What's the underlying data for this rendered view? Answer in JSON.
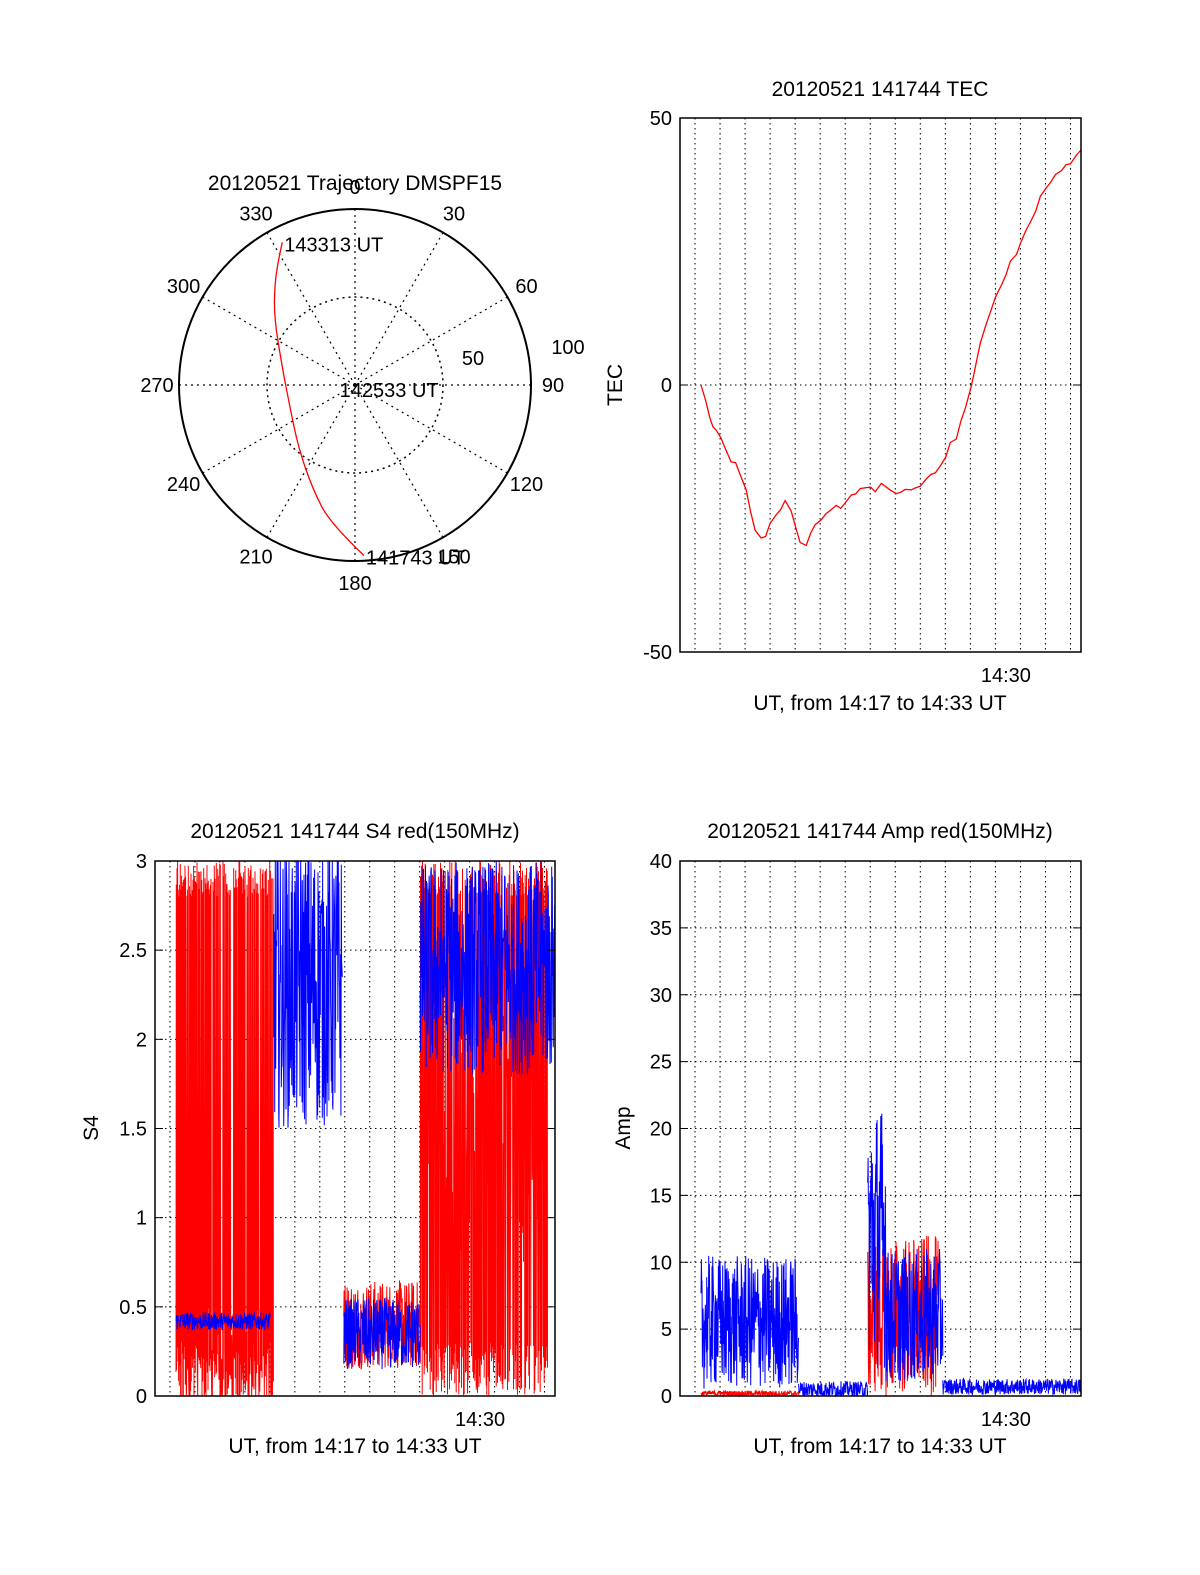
{
  "chart_data": [
    {
      "type": "polar",
      "title": "20120521 Trajectory DMSPF15",
      "azimuth_labels": [
        "0",
        "30",
        "60",
        "90",
        "120",
        "150",
        "180",
        "210",
        "240",
        "270",
        "300",
        "330"
      ],
      "radial_labels": [
        "50",
        "100"
      ],
      "radial_max": 100,
      "grid": true,
      "series": [
        {
          "color": "#ff0000",
          "points": [
            {
              "az": 177,
              "zenith": 97
            },
            {
              "az": 190,
              "zenith": 80
            },
            {
              "az": 202,
              "zenith": 64
            },
            {
              "az": 222,
              "zenith": 48
            },
            {
              "az": 252,
              "zenith": 39
            },
            {
              "az": 285,
              "zenith": 43
            },
            {
              "az": 310,
              "zenith": 60
            },
            {
              "az": 322,
              "zenith": 74
            },
            {
              "az": 329,
              "zenith": 84
            },
            {
              "az": 333,
              "zenith": 91
            }
          ]
        }
      ],
      "annotations": [
        {
          "text": "143313 UT",
          "az": 333,
          "zenith": 91
        },
        {
          "text": "142533 UT",
          "az": 260,
          "zenith": 10
        },
        {
          "text": "141743 UT",
          "az": 177,
          "zenith": 97
        }
      ]
    },
    {
      "type": "line",
      "title": "20120521 141744 TEC",
      "xlabel": "UT, from 14:17 to 14:33 UT",
      "ylabel": "TEC",
      "xlim": [
        14.283,
        14.55
      ],
      "ylim": [
        -50,
        50
      ],
      "yticks": [
        "-50",
        "0",
        "50"
      ],
      "xtick_label": "14:30",
      "xtick_value": 14.5,
      "grid": true,
      "series": [
        {
          "color": "#ff0000",
          "x": [
            14.297,
            14.3,
            14.303,
            14.305,
            14.307,
            14.31,
            14.313,
            14.317,
            14.32,
            14.323,
            14.327,
            14.33,
            14.333,
            14.337,
            14.34,
            14.343,
            14.347,
            14.35,
            14.353,
            14.357,
            14.36,
            14.363,
            14.367,
            14.37,
            14.373,
            14.377,
            14.38,
            14.383,
            14.387,
            14.39,
            14.393,
            14.397,
            14.4,
            14.403,
            14.407,
            14.41,
            14.413,
            14.417,
            14.42,
            14.423,
            14.427,
            14.43,
            14.433,
            14.437,
            14.44,
            14.443,
            14.447,
            14.45,
            14.453,
            14.457,
            14.46,
            14.463,
            14.467,
            14.47,
            14.473,
            14.477,
            14.48,
            14.483,
            14.487,
            14.49,
            14.493,
            14.497,
            14.5,
            14.503,
            14.507,
            14.51,
            14.513,
            14.517,
            14.52,
            14.523,
            14.527,
            14.53,
            14.533,
            14.537,
            14.54,
            14.543,
            14.547,
            14.55
          ],
          "y": [
            0,
            -3,
            -6,
            -8,
            -9,
            -10,
            -12,
            -14,
            -15,
            -17,
            -20,
            -24,
            -27,
            -29,
            -28,
            -26,
            -24,
            -23,
            -22,
            -24,
            -27,
            -29,
            -30,
            -28,
            -26,
            -25,
            -24,
            -24,
            -23,
            -23,
            -22,
            -21,
            -20,
            -19,
            -19,
            -19,
            -20,
            -19,
            -19,
            -20,
            -20,
            -20,
            -20,
            -20,
            -19,
            -19,
            -18,
            -17,
            -16,
            -15,
            -13,
            -11,
            -10,
            -7,
            -4,
            0,
            4,
            8,
            11,
            14,
            17,
            19,
            21,
            23,
            25,
            27,
            29,
            31,
            33,
            35,
            37,
            38,
            39,
            40,
            41,
            42,
            43,
            44
          ]
        }
      ]
    },
    {
      "type": "line",
      "title": "20120521 141744 S4 red(150MHz)",
      "xlabel": "UT, from 14:17 to 14:33 UT",
      "ylabel": "S4",
      "xlim": [
        14.283,
        14.55
      ],
      "ylim": [
        0,
        3
      ],
      "yticks": [
        "0",
        "0.5",
        "1",
        "1.5",
        "2",
        "2.5",
        "3"
      ],
      "xtick_label": "14:30",
      "xtick_value": 14.5,
      "grid": true,
      "series": [
        {
          "color": "#ff0000",
          "segments": [
            {
              "x_start": 14.297,
              "x_end": 14.362,
              "level": 0,
              "spread": 1,
              "kind": "oscillating",
              "low": 0,
              "high": 3
            },
            {
              "x_start": 14.409,
              "x_end": 14.46,
              "level": 0.4,
              "spread": 0.25,
              "kind": "noisy"
            },
            {
              "x_start": 14.46,
              "x_end": 14.545,
              "level": 1.5,
              "spread": 1.5,
              "kind": "oscillating",
              "low": 0,
              "high": 3
            }
          ]
        },
        {
          "color": "#0000ff",
          "segments": [
            {
              "x_start": 14.297,
              "x_end": 14.36,
              "level": 0.42,
              "spread": 0.05,
              "kind": "noisy"
            },
            {
              "x_start": 14.362,
              "x_end": 14.408,
              "level": 2.3,
              "spread": 0.8,
              "kind": "noisy"
            },
            {
              "x_start": 14.409,
              "x_end": 14.46,
              "level": 0.35,
              "spread": 0.2,
              "kind": "noisy"
            },
            {
              "x_start": 14.46,
              "x_end": 14.55,
              "level": 2.4,
              "spread": 0.6,
              "kind": "noisy"
            }
          ]
        }
      ]
    },
    {
      "type": "line",
      "title": "20120521 141744 Amp red(150MHz)",
      "xlabel": "UT, from 14:17 to 14:33 UT",
      "ylabel": "Amp",
      "xlim": [
        14.283,
        14.55
      ],
      "ylim": [
        0,
        40
      ],
      "yticks": [
        "0",
        "5",
        "10",
        "15",
        "20",
        "25",
        "30",
        "35",
        "40"
      ],
      "xtick_label": "14:30",
      "xtick_value": 14.5,
      "grid": true,
      "series": [
        {
          "color": "#ff0000",
          "segments": [
            {
              "x_start": 14.297,
              "x_end": 14.362,
              "level": 0.2,
              "spread": 0.2,
              "kind": "noisy"
            },
            {
              "x_start": 14.408,
              "x_end": 14.455,
              "level": 6,
              "spread": 6,
              "kind": "noisy"
            }
          ]
        },
        {
          "color": "#0000ff",
          "segments": [
            {
              "x_start": 14.297,
              "x_end": 14.362,
              "level": 5.5,
              "spread": 5,
              "kind": "noisy"
            },
            {
              "x_start": 14.362,
              "x_end": 14.408,
              "level": 0.5,
              "spread": 0.6,
              "kind": "noisy"
            },
            {
              "x_start": 14.408,
              "x_end": 14.42,
              "level": 12,
              "spread": 10,
              "kind": "noisy"
            },
            {
              "x_start": 14.42,
              "x_end": 14.458,
              "level": 6,
              "spread": 5,
              "kind": "noisy"
            },
            {
              "x_start": 14.458,
              "x_end": 14.55,
              "level": 0.7,
              "spread": 0.6,
              "kind": "noisy"
            }
          ]
        }
      ]
    }
  ]
}
